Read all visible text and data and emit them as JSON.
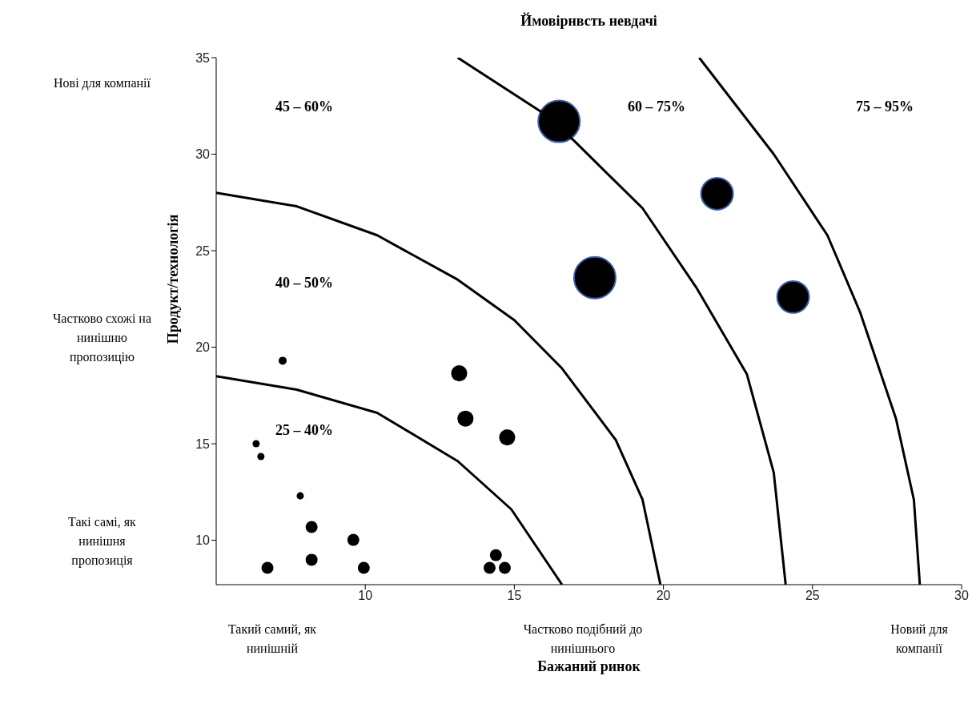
{
  "chart_data": {
    "type": "bubble",
    "title": "Ймовірнвсть невдачі",
    "xlabel": "Бажаний ринок",
    "ylabel": "Продукт/технологія",
    "xlim": [
      5,
      30
    ],
    "xticks": [
      10,
      15,
      20,
      25,
      30
    ],
    "ylim": [
      7.7,
      35
    ],
    "yticks": [
      10,
      15,
      20,
      25,
      30,
      35
    ],
    "series": [
      {
        "color": "#000000",
        "x": [
          16.5,
          21.8,
          17.7,
          24.35
        ],
        "values": [
          31.7,
          27.95,
          23.6,
          22.6
        ],
        "sizes": [
          1,
          0.59,
          1,
          0.59
        ]
      },
      {
        "color": "#000000",
        "x": [
          7.23,
          13.15,
          13.36,
          14.76,
          6.34,
          6.5,
          7.82,
          8.2,
          9.6,
          8.2,
          6.72,
          9.95,
          14.38,
          14.17,
          14.68
        ],
        "values": [
          19.3,
          18.65,
          16.3,
          15.33,
          15.0,
          14.34,
          12.3,
          10.69,
          10.02,
          8.99,
          8.57,
          8.57,
          9.23,
          8.57,
          8.57
        ],
        "sizes": [
          0.037,
          0.15,
          0.15,
          0.15,
          0.03,
          0.03,
          0.03,
          0.083,
          0.083,
          0.083,
          0.083,
          0.083,
          0.083,
          0.083,
          0.083
        ]
      },
      {
        "type": "line",
        "color": "#000000",
        "x": [
          5,
          7.7,
          10.4,
          13.1,
          14.9,
          16.6
        ],
        "values": [
          18.5,
          17.8,
          16.6,
          14.1,
          11.6,
          7.7
        ]
      },
      {
        "type": "line",
        "color": "#000000",
        "x": [
          5,
          7.7,
          10.4,
          13.1,
          15,
          16.6,
          18.4,
          19.3,
          19.9
        ],
        "values": [
          28,
          27.3,
          25.8,
          23.5,
          21.4,
          18.9,
          15.2,
          12.1,
          7.7
        ]
      },
      {
        "type": "line",
        "color": "#000000",
        "x": [
          13.1,
          16,
          17,
          19.3,
          21.1,
          22.8,
          23.7,
          24.1
        ],
        "values": [
          35,
          32.1,
          30.7,
          27.2,
          23.1,
          18.6,
          13.5,
          7.7
        ]
      },
      {
        "type": "line",
        "color": "#000000",
        "x": [
          21.2,
          23.7,
          25.5,
          26.6,
          27.8,
          28.4,
          28.6
        ],
        "values": [
          35,
          30,
          25.8,
          21.8,
          16.3,
          12.1,
          7.7
        ]
      }
    ],
    "annotations": [
      "Нові для компанії",
      "Частково схожі на нинішню пропозицію",
      "Такі самі, як нинішня пропозиція",
      "Такий самий, як нинішній",
      "Частково подібний до нинішнього",
      "Новий для компанії",
      "45 – 60%",
      "60 – 75%",
      "75 – 95%",
      "40 – 50%",
      "25 – 40%"
    ]
  }
}
